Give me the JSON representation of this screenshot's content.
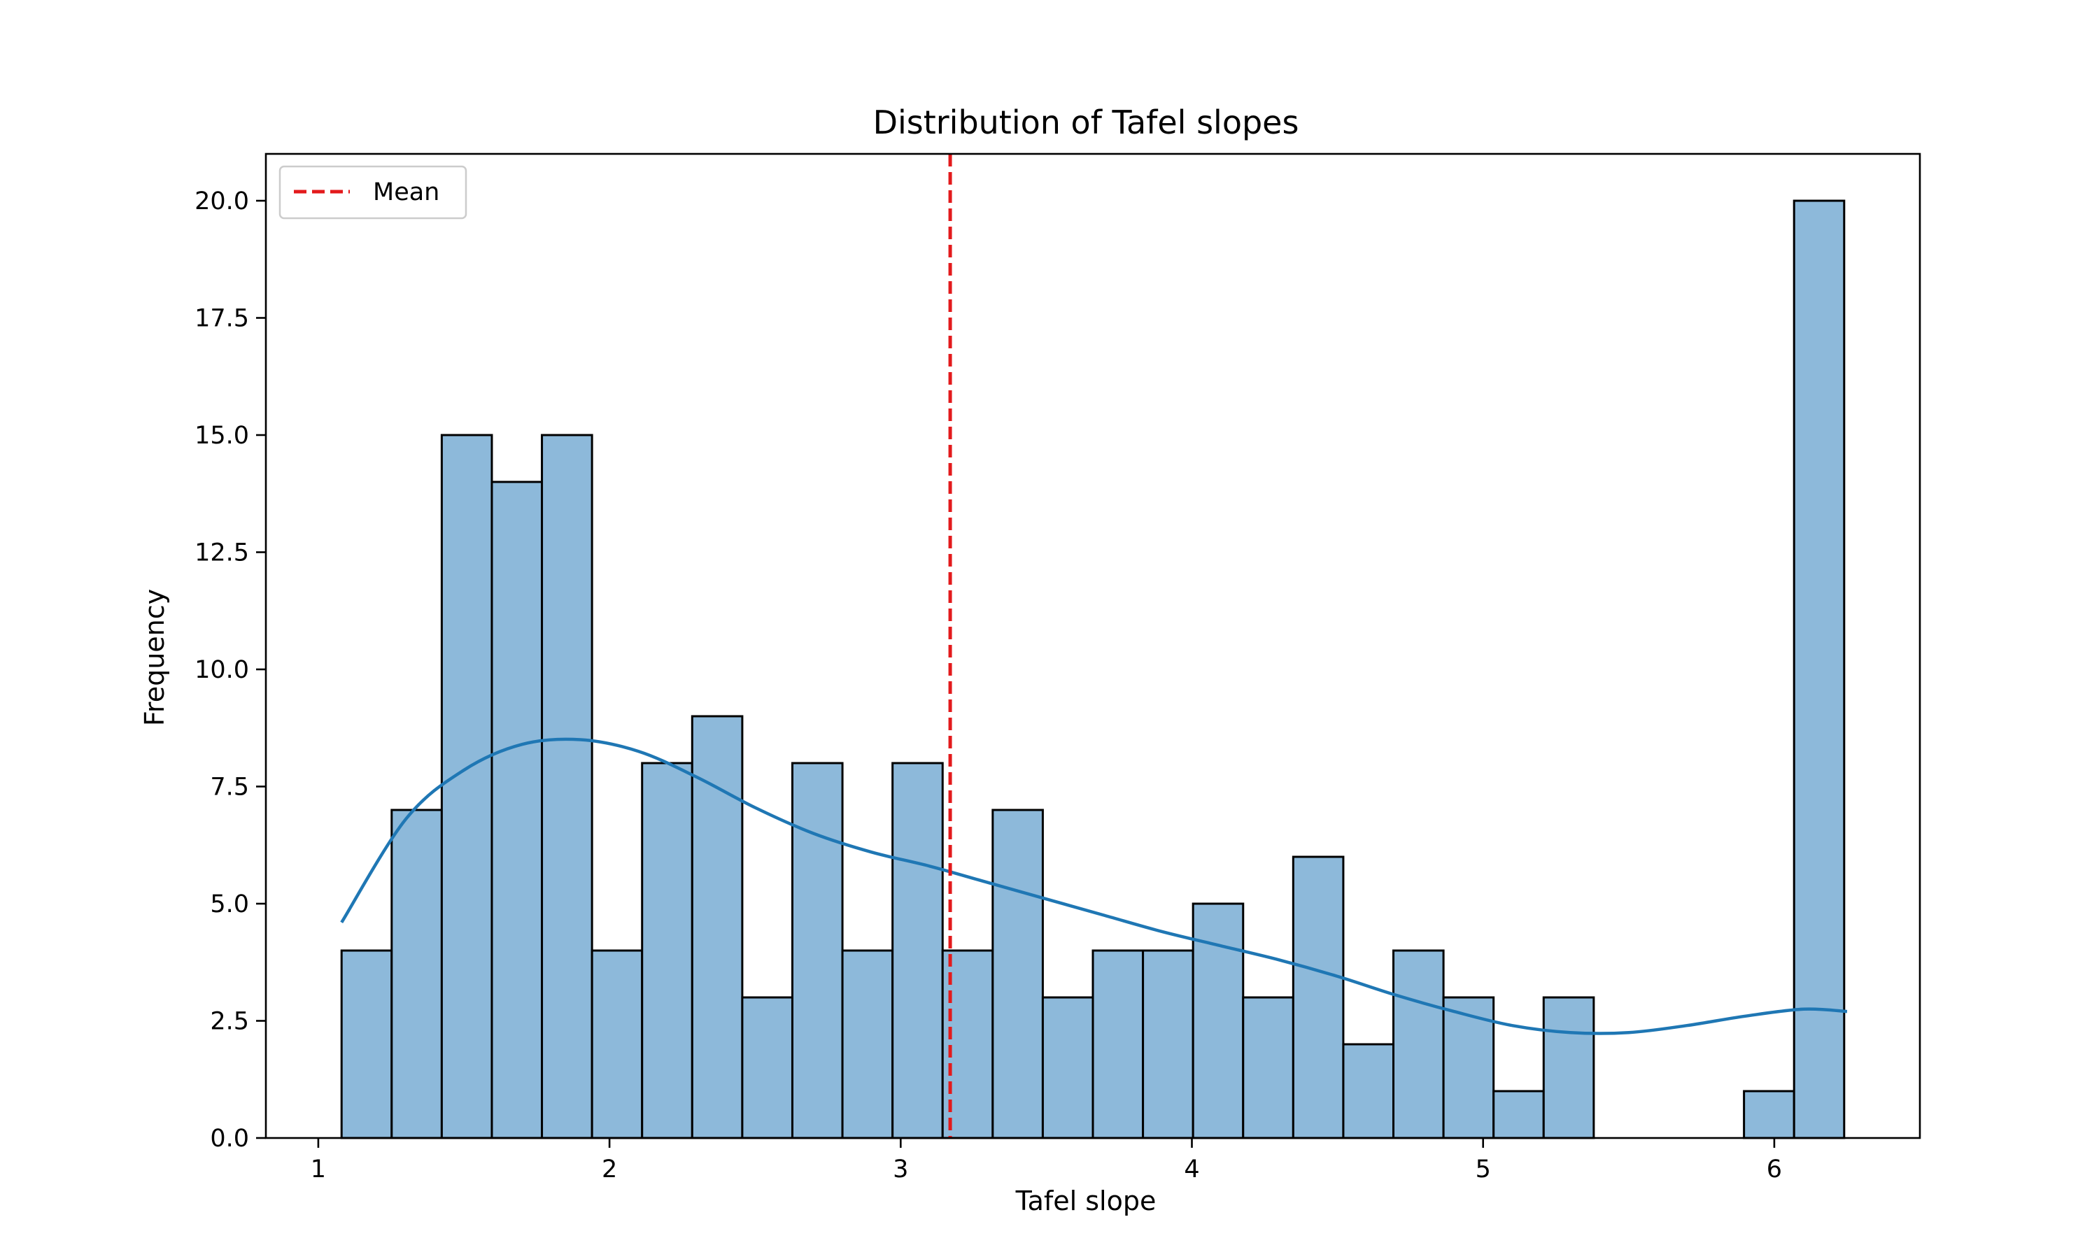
{
  "chart_data": {
    "type": "bar",
    "title": "Distribution of Tafel slopes",
    "xlabel": "Tafel slope",
    "ylabel": "Frequency",
    "xlim": [
      0.82,
      6.5
    ],
    "ylim": [
      0,
      21
    ],
    "xticks": [
      1,
      2,
      3,
      4,
      5,
      6
    ],
    "yticks": [
      0.0,
      2.5,
      5.0,
      7.5,
      10.0,
      12.5,
      15.0,
      17.5,
      20.0
    ],
    "bin_start": 1.08,
    "bin_width": 0.172,
    "counts": [
      4,
      7,
      15,
      14,
      15,
      4,
      8,
      9,
      3,
      8,
      4,
      8,
      4,
      7,
      3,
      4,
      4,
      5,
      3,
      6,
      2,
      4,
      3,
      1,
      3,
      0,
      0,
      0,
      1,
      20
    ],
    "bar_color": "#8db9da",
    "bar_edge_color": "#000000",
    "kde": {
      "x": [
        1.08,
        1.3,
        1.5,
        1.7,
        1.9,
        2.1,
        2.3,
        2.5,
        2.7,
        2.9,
        3.1,
        3.3,
        3.5,
        3.7,
        3.9,
        4.1,
        4.3,
        4.5,
        4.7,
        4.9,
        5.1,
        5.3,
        5.5,
        5.7,
        5.9,
        6.1,
        6.25
      ],
      "y": [
        4.6,
        6.8,
        7.85,
        8.4,
        8.5,
        8.25,
        7.7,
        7.05,
        6.5,
        6.1,
        5.8,
        5.45,
        5.1,
        4.75,
        4.4,
        4.1,
        3.8,
        3.45,
        3.05,
        2.7,
        2.4,
        2.25,
        2.25,
        2.4,
        2.6,
        2.75,
        2.7
      ],
      "color": "#1f77b4"
    },
    "mean_line": {
      "x": 3.17,
      "label": "Mean",
      "color": "#e31a1c",
      "style": "dashed"
    },
    "legend": {
      "position": "top-left",
      "entries": [
        "Mean"
      ]
    },
    "grid": false
  }
}
